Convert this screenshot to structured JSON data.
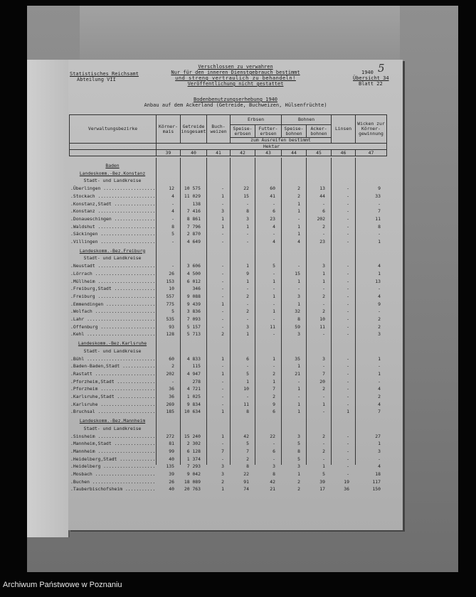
{
  "header": {
    "office": "Statistisches Reichsamt",
    "department": "Abteilung VII",
    "notice": [
      "Verschlossen zu verwahren",
      "Nur für den inneren Dienstgebrauch bestimmt",
      "und streng vertraulich zu behandeln!",
      "Veröffentlichung nicht gestattet"
    ],
    "year": "1940",
    "overview": "Übersicht 34",
    "sheet": "Blatt 22",
    "handwritten_page": "5",
    "title": "Bodenbenutzungserhebung 1940",
    "subtitle": "Anbau auf dem Ackerland (Getreide, Buchweizen, Hülsenfrüchte)"
  },
  "table": {
    "col_district": "Verwaltungsbezirke",
    "col_maize": "Körner-mais",
    "col_grain": "Getreide insgesamt",
    "col_buckwheat": "Buch-weizen",
    "group_peas": "Erbsen",
    "col_food_peas": "Speise-erbsen",
    "col_fodder_peas": "Futter-erbsen",
    "group_beans": "Bohnen",
    "col_food_beans": "Speise-bohnen",
    "col_field_beans": "Acker-bohnen",
    "ripening_note": "zum Ausreifen bestimmt",
    "col_lentils": "Linsen",
    "col_vetch": "Wicken zur Körner-gewinnung",
    "unit": "Hektar",
    "col_numbers": [
      "39",
      "40",
      "41",
      "42",
      "43",
      "44",
      "45",
      "46",
      "47"
    ],
    "state": "Baden",
    "sub_label": "Stadt- und Landkreise",
    "sections": [
      {
        "title": "Landeskomm.-Bez.Konstanz",
        "rows": [
          [
            "Überlingen",
            "12",
            "10 575",
            "-",
            "22",
            "60",
            "2",
            "13",
            "-",
            "9"
          ],
          [
            "Stockach",
            "4",
            "11 029",
            "1",
            "15",
            "41",
            "2",
            "44",
            "-",
            "33"
          ],
          [
            "Konstanz,Stadt",
            "-",
            "138",
            "-",
            "-",
            "-",
            "1",
            "-",
            "-",
            "-"
          ],
          [
            "Konstanz",
            "4",
            "7 416",
            "3",
            "8",
            "6",
            "1",
            "6",
            "-",
            "7"
          ],
          [
            "Donaueschingen",
            "-",
            "8 861",
            "1",
            "3",
            "23",
            "-",
            "202",
            "-",
            "11"
          ],
          [
            "Waldshut",
            "8",
            "7 796",
            "1",
            "1",
            "4",
            "1",
            "2",
            "-",
            "8"
          ],
          [
            "Säckingen",
            "5",
            "2 870",
            "-",
            "-",
            "-",
            "1",
            "-",
            "-",
            "-"
          ],
          [
            "Villingen",
            "-",
            "4 649",
            "-",
            "-",
            "4",
            "4",
            "23",
            "-",
            "1"
          ]
        ]
      },
      {
        "title": "Landeskomm.-Bez.Freiburg",
        "rows": [
          [
            "Neustadt",
            "-",
            "3 606",
            "-",
            "1",
            "5",
            "-",
            "3",
            "-",
            "4"
          ],
          [
            "Lörrach",
            "26",
            "4 500",
            "-",
            "9",
            "-",
            "15",
            "1",
            "-",
            "1"
          ],
          [
            "Müllheim",
            "153",
            "6 012",
            "-",
            "1",
            "1",
            "1",
            "1",
            "-",
            "13"
          ],
          [
            "Freiburg,Stadt",
            "10",
            "346",
            "-",
            "-",
            "-",
            "-",
            "-",
            "-",
            "-"
          ],
          [
            "Freiburg",
            "557",
            "9 088",
            "-",
            "2",
            "1",
            "3",
            "2",
            "-",
            "4"
          ],
          [
            "Emmendingen",
            "775",
            "9 439",
            "1",
            "-",
            "-",
            "1",
            "-",
            "-",
            "9"
          ],
          [
            "Wolfach",
            "5",
            "3 836",
            "-",
            "2",
            "1",
            "32",
            "2",
            "-",
            "-"
          ],
          [
            "Lahr",
            "535",
            "7 093",
            "-",
            "-",
            "-",
            "8",
            "10",
            "-",
            "2"
          ],
          [
            "Offenburg",
            "93",
            "5 157",
            "-",
            "3",
            "11",
            "59",
            "11",
            "-",
            "2"
          ],
          [
            "Kehl",
            "128",
            "5 713",
            "2",
            "1",
            "-",
            "3",
            "-",
            "-",
            "3"
          ]
        ]
      },
      {
        "title": "Landeskomm.-Bez.Karlsruhe",
        "rows": [
          [
            "Bühl",
            "60",
            "4 833",
            "1",
            "6",
            "1",
            "35",
            "3",
            "-",
            "1"
          ],
          [
            "Baden-Baden,Stadt",
            "2",
            "115",
            "-",
            "-",
            "-",
            "1",
            "-",
            "-",
            "-"
          ],
          [
            "Rastatt",
            "202",
            "4 947",
            "1",
            "5",
            "2",
            "21",
            "7",
            "-",
            "1"
          ],
          [
            "Pforzheim,Stadt",
            "-",
            "278",
            "-",
            "1",
            "1",
            "-",
            "20",
            "-",
            "-"
          ],
          [
            "Pforzheim",
            "36",
            "4 721",
            "-",
            "10",
            "7",
            "1",
            "2",
            "-",
            "4"
          ],
          [
            "Karlsruhe,Stadt",
            "36",
            "1 025",
            "-",
            "-",
            "2",
            "-",
            "-",
            "-",
            "2"
          ],
          [
            "Karlsruhe",
            "269",
            "9 834",
            "-",
            "11",
            "9",
            "1",
            "1",
            "-",
            "4"
          ],
          [
            "Bruchsal",
            "185",
            "10 634",
            "1",
            "8",
            "6",
            "1",
            "-",
            "1",
            "7"
          ]
        ]
      },
      {
        "title": "Landeskomm.-Bez.Mannheim",
        "rows": [
          [
            "Sinsheim",
            "272",
            "15 240",
            "1",
            "42",
            "22",
            "3",
            "2",
            "-",
            "27"
          ],
          [
            "Mannheim,Stadt",
            "81",
            "2 302",
            "-",
            "5",
            "-",
            "5",
            "-",
            "-",
            "1"
          ],
          [
            "Mannheim",
            "99",
            "6 128",
            "7",
            "7",
            "6",
            "8",
            "2",
            "-",
            "3"
          ],
          [
            "Heidelberg,Stadt",
            "40",
            "1 374",
            "-",
            "2",
            "-",
            "5",
            "-",
            "-",
            "-"
          ],
          [
            "Heidelberg",
            "135",
            "7 293",
            "3",
            "8",
            "3",
            "3",
            "1",
            "-",
            "4"
          ],
          [
            "Mosbach",
            "39",
            "9 042",
            "3",
            "22",
            "8",
            "1",
            "5",
            "-",
            "18"
          ],
          [
            "Buchen",
            "26",
            "18 089",
            "2",
            "91",
            "42",
            "2",
            "39",
            "19",
            "117"
          ],
          [
            "Tauberbischofsheim",
            "40",
            "20 763",
            "1",
            "74",
            "21",
            "2",
            "17",
            "36",
            "150"
          ]
        ]
      }
    ]
  },
  "footer": {
    "archive": "Archiwum Państwowe w Poznaniu"
  }
}
